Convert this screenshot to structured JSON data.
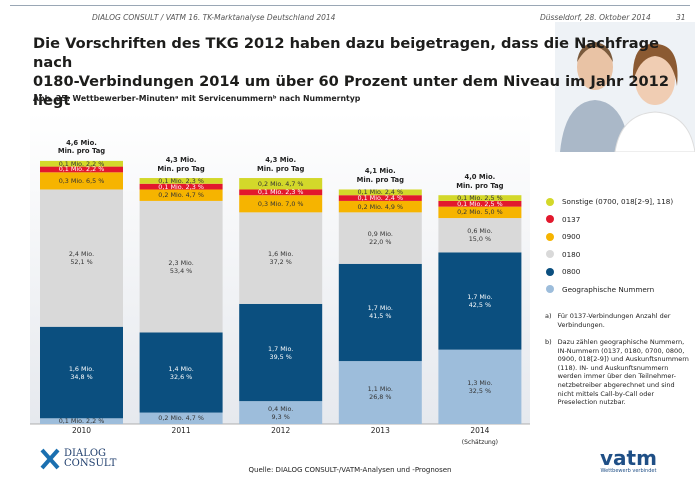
{
  "header": {
    "left": "DIALOG CONSULT / VATM 16. TK-Marktanalyse Deutschland 2014",
    "right": "Düsseldorf, 28. Oktober 2014",
    "page": "31"
  },
  "title": "Die Vorschriften des TKG 2012 haben dazu beigetragen, dass die Nachfrage nach\n0180-Verbindungen 2014 um über 60 Prozent unter dem Niveau im Jahr 2012 liegt",
  "chart_data": {
    "type": "stacked_bar",
    "subtitle": "Abb. 25: Wettbewerber-Minutenᵃ mit Servicenummernᵇ nach Nummerntyp",
    "categories": [
      "2010",
      "2011",
      "2012",
      "2013",
      "2014"
    ],
    "annotation": "(Schätzung)",
    "total_labels": [
      "4,6 Mio.\nMin. pro Tag",
      "4,3 Mio.\nMin. pro Tag",
      "4,3 Mio.\nMin. pro Tag",
      "4,1 Mio.\nMin. pro Tag",
      "4,0 Mio.\nMin. pro Tag"
    ],
    "series": [
      {
        "name": "Geographische Nummern",
        "color": "#9dbddb",
        "values": [
          0.1,
          0.2,
          0.4,
          1.1,
          1.3
        ],
        "value_labels": [
          "0,1 Mio. 2,2 %",
          "0,2 Mio. 4,7 %",
          "0,4 Mio.\n9,3 %",
          "1,1 Mio.\n26,8 %",
          "1,3 Mio.\n32,5 %"
        ]
      },
      {
        "name": "0800",
        "color": "#0b4f7f",
        "values": [
          1.6,
          1.4,
          1.7,
          1.7,
          1.7
        ],
        "value_labels": [
          "1,6 Mio.\n34,8 %",
          "1,4 Mio.\n32,6 %",
          "1,7 Mio.\n39,5 %",
          "1,7 Mio.\n41,5 %",
          "1,7 Mio.\n42,5 %"
        ]
      },
      {
        "name": "0180",
        "color": "#d9d9d9",
        "values": [
          2.4,
          2.3,
          1.6,
          0.9,
          0.6
        ],
        "value_labels": [
          "2,4 Mio.\n52,1 %",
          "2,3 Mio.\n53,4 %",
          "1,6 Mio.\n37,2 %",
          "0,9 Mio.\n22,0 %",
          "0,6 Mio.\n15,0 %"
        ]
      },
      {
        "name": "0900",
        "color": "#f6b400",
        "values": [
          0.3,
          0.2,
          0.3,
          0.2,
          0.2
        ],
        "value_labels": [
          "0,3 Mio. 6,5 %",
          "0,2 Mio. 4,7 %",
          "0,3 Mio. 7,0 %",
          "0,2 Mio. 4,9 %",
          "0,2 Mio. 5,0 %"
        ]
      },
      {
        "name": "0137",
        "color": "#e2182d",
        "values": [
          0.1,
          0.1,
          0.1,
          0.1,
          0.1
        ],
        "value_labels": [
          "0,1 Mio. 2,2 %",
          "0,1 Mio. 2,3 %",
          "0,1 Mio. 2,3 %",
          "0,1 Mio. 2,4 %",
          "0,1 Mio. 2,5 %"
        ]
      },
      {
        "name": "Sonstige (0700, 018[2-9], 118)",
        "color": "#d3d82a",
        "values": [
          0.1,
          0.1,
          0.2,
          0.1,
          0.1
        ],
        "value_labels": [
          "0,1 Mio. 2,2 %",
          "0,1 Mio. 2,3 %",
          "0,2 Mio. 4,7 %",
          "0,1 Mio. 2,4 %",
          "0,1 Mio. 2,5 %"
        ]
      }
    ]
  },
  "footnotes": [
    {
      "mark": "a)",
      "text": "Für 0137-Verbindungen Anzahl der\nVerbindungen."
    },
    {
      "mark": "b)",
      "text": "Dazu zählen geographische Nummern,\nIN-Nummern (0137, 0180, 0700, 0800,\n0900, 018[2-9]) und Auskunftsnummern\n(118). IN- und Auskunftsnummern\nwerden immer über den Teilnehmer-\nnetzbetreiber abgerechnet und sind\nnicht mittels Call-by-Call oder\nPreselection nutzbar."
    }
  ],
  "source": "Quelle: DIALOG CONSULT-/VATM-Analysen und -Prognosen",
  "logos": {
    "left": "DIALOG\nCONSULT",
    "right": "vatm",
    "right_tagline": "Wettbewerb verbindet"
  }
}
